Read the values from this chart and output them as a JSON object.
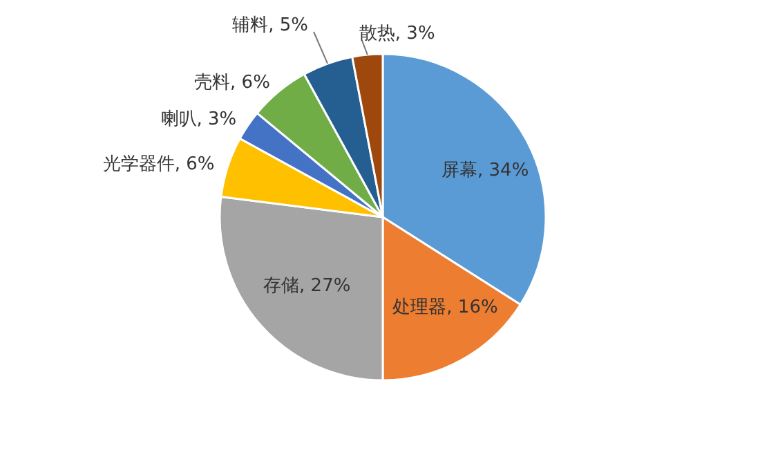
{
  "chart_data": {
    "type": "pie",
    "categories": [
      "屏幕",
      "处理器",
      "存储",
      "光学器件",
      "喇叭",
      "壳料",
      "辅料",
      "散热"
    ],
    "values": [
      34,
      16,
      27,
      6,
      3,
      6,
      5,
      3
    ],
    "value_labels": [
      "34%",
      "16%",
      "27%",
      "6%",
      "3%",
      "6%",
      "5%",
      "3%"
    ],
    "colors": [
      "#5b9bd5",
      "#ed7d31",
      "#a5a5a5",
      "#ffc000",
      "#4472c4",
      "#70ad47",
      "#255e91",
      "#9e480e"
    ]
  }
}
